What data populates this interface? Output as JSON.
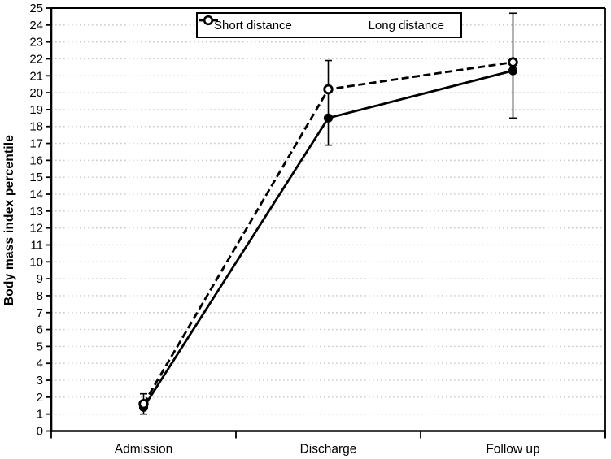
{
  "figure": {
    "background": "#ffffff"
  },
  "chart_data": {
    "type": "line",
    "title": "",
    "categories": [
      "Admission",
      "Discharge",
      "Follow up"
    ],
    "series": [
      {
        "name": "Short distance",
        "color": "#000000",
        "line_style": "solid",
        "marker": "filled-circle",
        "values": [
          1.4,
          18.5,
          21.3
        ]
      },
      {
        "name": "Long distance",
        "color": "#000000",
        "line_style": "dashed",
        "marker": "open-circle",
        "values": [
          1.6,
          20.2,
          21.8
        ]
      }
    ],
    "error_bars": {
      "low": [
        1.0,
        16.9,
        18.5
      ],
      "high": [
        2.2,
        21.9,
        24.7
      ]
    },
    "xlabel": "",
    "ylabel": "Body mass index percentile",
    "ylim": [
      0,
      25
    ],
    "ytick_step": 1,
    "grid": "horizontal-dotted",
    "gridline_color": "#c9c9c9",
    "axis_color": "#000000",
    "legend_position": "top-center-inside"
  }
}
